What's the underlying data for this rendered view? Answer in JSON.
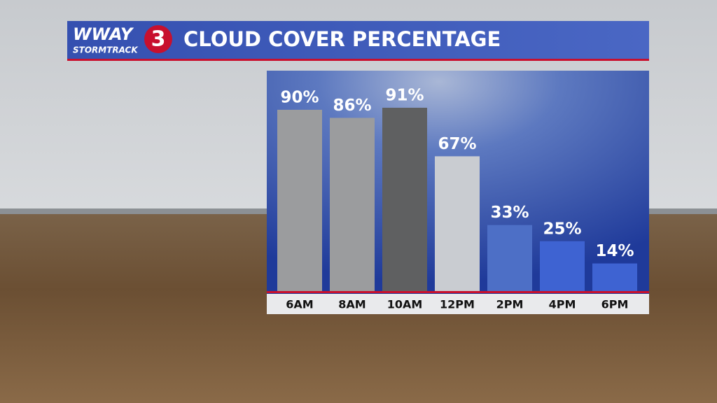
{
  "brand": {
    "name": "WWAY",
    "channel": "3",
    "tagline": "STORMTRACK"
  },
  "chart_data": {
    "type": "bar",
    "title": "CLOUD COVER PERCENTAGE",
    "categories": [
      "6AM",
      "8AM",
      "10AM",
      "12PM",
      "2PM",
      "4PM",
      "6PM"
    ],
    "values": [
      90,
      86,
      91,
      67,
      33,
      25,
      14
    ],
    "value_labels": [
      "90%",
      "86%",
      "91%",
      "67%",
      "33%",
      "25%",
      "14%"
    ],
    "colors": [
      "#9b9c9e",
      "#9b9c9e",
      "#5f6061",
      "#c9ccd1",
      "#4d6fc6",
      "#3e63d2",
      "#3e63d2"
    ],
    "ylim": [
      0,
      100
    ]
  }
}
